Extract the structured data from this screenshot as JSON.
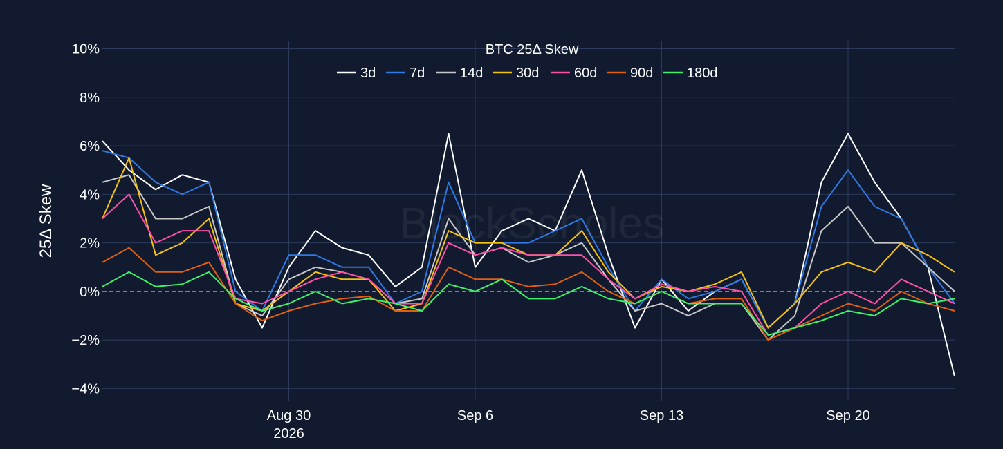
{
  "chart_data": {
    "type": "line",
    "title": "BTC 25Δ Skew",
    "ylabel": "25Δ Skew",
    "xlabel": "",
    "watermark": "BlockScholes",
    "x_range": [
      "2026-08-23",
      "2026-09-24"
    ],
    "ylim": [
      -4.5,
      10.3
    ],
    "y_ticks": [
      {
        "value": 10,
        "label": "10%"
      },
      {
        "value": 8,
        "label": "8%"
      },
      {
        "value": 6,
        "label": "6%"
      },
      {
        "value": 4,
        "label": "4%"
      },
      {
        "value": 2,
        "label": "2%"
      },
      {
        "value": 0,
        "label": "0%"
      },
      {
        "value": -2,
        "label": "−2%"
      },
      {
        "value": -4,
        "label": "−4%"
      }
    ],
    "x_ticks": [
      {
        "date": "2026-08-30",
        "label": "Aug 30",
        "sublabel": "2026"
      },
      {
        "date": "2026-09-06",
        "label": "Sep 6",
        "sublabel": ""
      },
      {
        "date": "2026-09-13",
        "label": "Sep 13",
        "sublabel": ""
      },
      {
        "date": "2026-09-20",
        "label": "Sep 20",
        "sublabel": ""
      }
    ],
    "grid": true,
    "zero_line": "dashed",
    "legend_position": "top-center",
    "x_dates": [
      "2026-08-23",
      "2026-08-24",
      "2026-08-25",
      "2026-08-26",
      "2026-08-27",
      "2026-08-28",
      "2026-08-29",
      "2026-08-30",
      "2026-08-31",
      "2026-09-01",
      "2026-09-02",
      "2026-09-03",
      "2026-09-04",
      "2026-09-05",
      "2026-09-06",
      "2026-09-07",
      "2026-09-08",
      "2026-09-09",
      "2026-09-10",
      "2026-09-11",
      "2026-09-12",
      "2026-09-13",
      "2026-09-14",
      "2026-09-15",
      "2026-09-16",
      "2026-09-17",
      "2026-09-18",
      "2026-09-19",
      "2026-09-20",
      "2026-09-21",
      "2026-09-22",
      "2026-09-23",
      "2026-09-24"
    ],
    "series": [
      {
        "name": "3d",
        "color": "#ffffff",
        "values": [
          6.2,
          5.0,
          4.2,
          4.8,
          4.5,
          0.5,
          -1.5,
          1.0,
          2.5,
          1.8,
          1.5,
          0.2,
          1.0,
          6.5,
          1.0,
          2.5,
          3.0,
          2.5,
          5.0,
          1.5,
          -1.5,
          0.5,
          -0.8,
          0.0,
          0.5,
          -1.5,
          -0.5,
          4.5,
          6.5,
          4.5,
          3.0,
          1.0,
          -3.5
        ]
      },
      {
        "name": "7d",
        "color": "#2f7ae5",
        "values": [
          5.8,
          5.5,
          4.5,
          4.0,
          4.5,
          0.0,
          -0.8,
          1.5,
          1.5,
          1.0,
          1.0,
          -0.5,
          0.0,
          4.5,
          2.0,
          2.0,
          2.0,
          2.5,
          3.0,
          1.0,
          -0.8,
          0.5,
          -0.3,
          0.0,
          0.5,
          -1.5,
          -0.5,
          3.5,
          5.0,
          3.5,
          3.0,
          1.0,
          -0.5
        ]
      },
      {
        "name": "14d",
        "color": "#c8c8c8",
        "values": [
          4.5,
          4.8,
          3.0,
          3.0,
          3.5,
          -0.5,
          -1.0,
          0.5,
          1.0,
          0.8,
          0.5,
          -0.5,
          -0.3,
          3.0,
          1.5,
          1.8,
          1.2,
          1.5,
          2.0,
          0.5,
          -0.8,
          -0.5,
          -1.0,
          -0.5,
          -0.5,
          -2.0,
          -1.0,
          2.5,
          3.5,
          2.0,
          2.0,
          1.0,
          0.0
        ]
      },
      {
        "name": "30d",
        "color": "#f5c211",
        "values": [
          3.0,
          5.5,
          1.5,
          2.0,
          3.0,
          -0.5,
          -0.8,
          0.0,
          0.8,
          0.5,
          0.5,
          -0.8,
          -0.5,
          2.5,
          2.0,
          2.0,
          1.5,
          1.5,
          2.5,
          0.8,
          -0.3,
          0.2,
          0.0,
          0.3,
          0.8,
          -1.5,
          -0.5,
          0.8,
          1.2,
          0.8,
          2.0,
          1.5,
          0.8
        ]
      },
      {
        "name": "60d",
        "color": "#ff4fa8",
        "values": [
          3.0,
          4.0,
          2.0,
          2.5,
          2.5,
          -0.3,
          -0.5,
          0.0,
          0.5,
          0.8,
          0.5,
          -0.5,
          -0.5,
          2.0,
          1.5,
          1.8,
          1.5,
          1.5,
          1.5,
          0.5,
          -0.3,
          0.3,
          0.0,
          0.2,
          0.0,
          -1.8,
          -1.5,
          -0.5,
          0.0,
          -0.5,
          0.5,
          0.0,
          -0.5
        ]
      },
      {
        "name": "90d",
        "color": "#e0600f",
        "values": [
          1.2,
          1.8,
          0.8,
          0.8,
          1.2,
          -0.5,
          -1.2,
          -0.8,
          -0.5,
          -0.3,
          -0.2,
          -0.8,
          -0.8,
          1.0,
          0.5,
          0.5,
          0.2,
          0.3,
          0.8,
          0.0,
          -0.5,
          0.0,
          -0.5,
          -0.3,
          -0.3,
          -2.0,
          -1.5,
          -1.0,
          -0.5,
          -0.8,
          0.0,
          -0.5,
          -0.8
        ]
      },
      {
        "name": "180d",
        "color": "#3ef06a",
        "values": [
          0.2,
          0.8,
          0.2,
          0.3,
          0.8,
          -0.3,
          -0.8,
          -0.5,
          0.0,
          -0.5,
          -0.3,
          -0.5,
          -0.8,
          0.3,
          0.0,
          0.5,
          -0.3,
          -0.3,
          0.2,
          -0.3,
          -0.5,
          0.0,
          -0.5,
          -0.5,
          -0.5,
          -1.8,
          -1.5,
          -1.2,
          -0.8,
          -1.0,
          -0.3,
          -0.5,
          -0.3
        ]
      }
    ]
  }
}
